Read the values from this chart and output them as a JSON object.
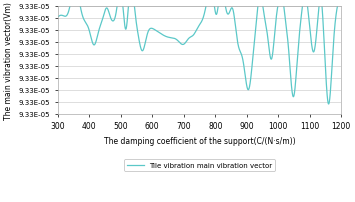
{
  "xlabel": "The damping coefficient of the support(C/(N·s/m))",
  "ylabel": "The main vibration vector(Vm)",
  "legend_label": "Tile vibration main vibration vector",
  "line_color": "#5BC8C8",
  "xmin": 300,
  "xmax": 1200,
  "xticks": [
    300,
    400,
    500,
    600,
    700,
    800,
    900,
    1000,
    1100,
    1200
  ],
  "ymin": 9.2685e-05,
  "ymax": 9.3415e-05,
  "num_yticks": 10,
  "ytick_label": "9.33E-05"
}
